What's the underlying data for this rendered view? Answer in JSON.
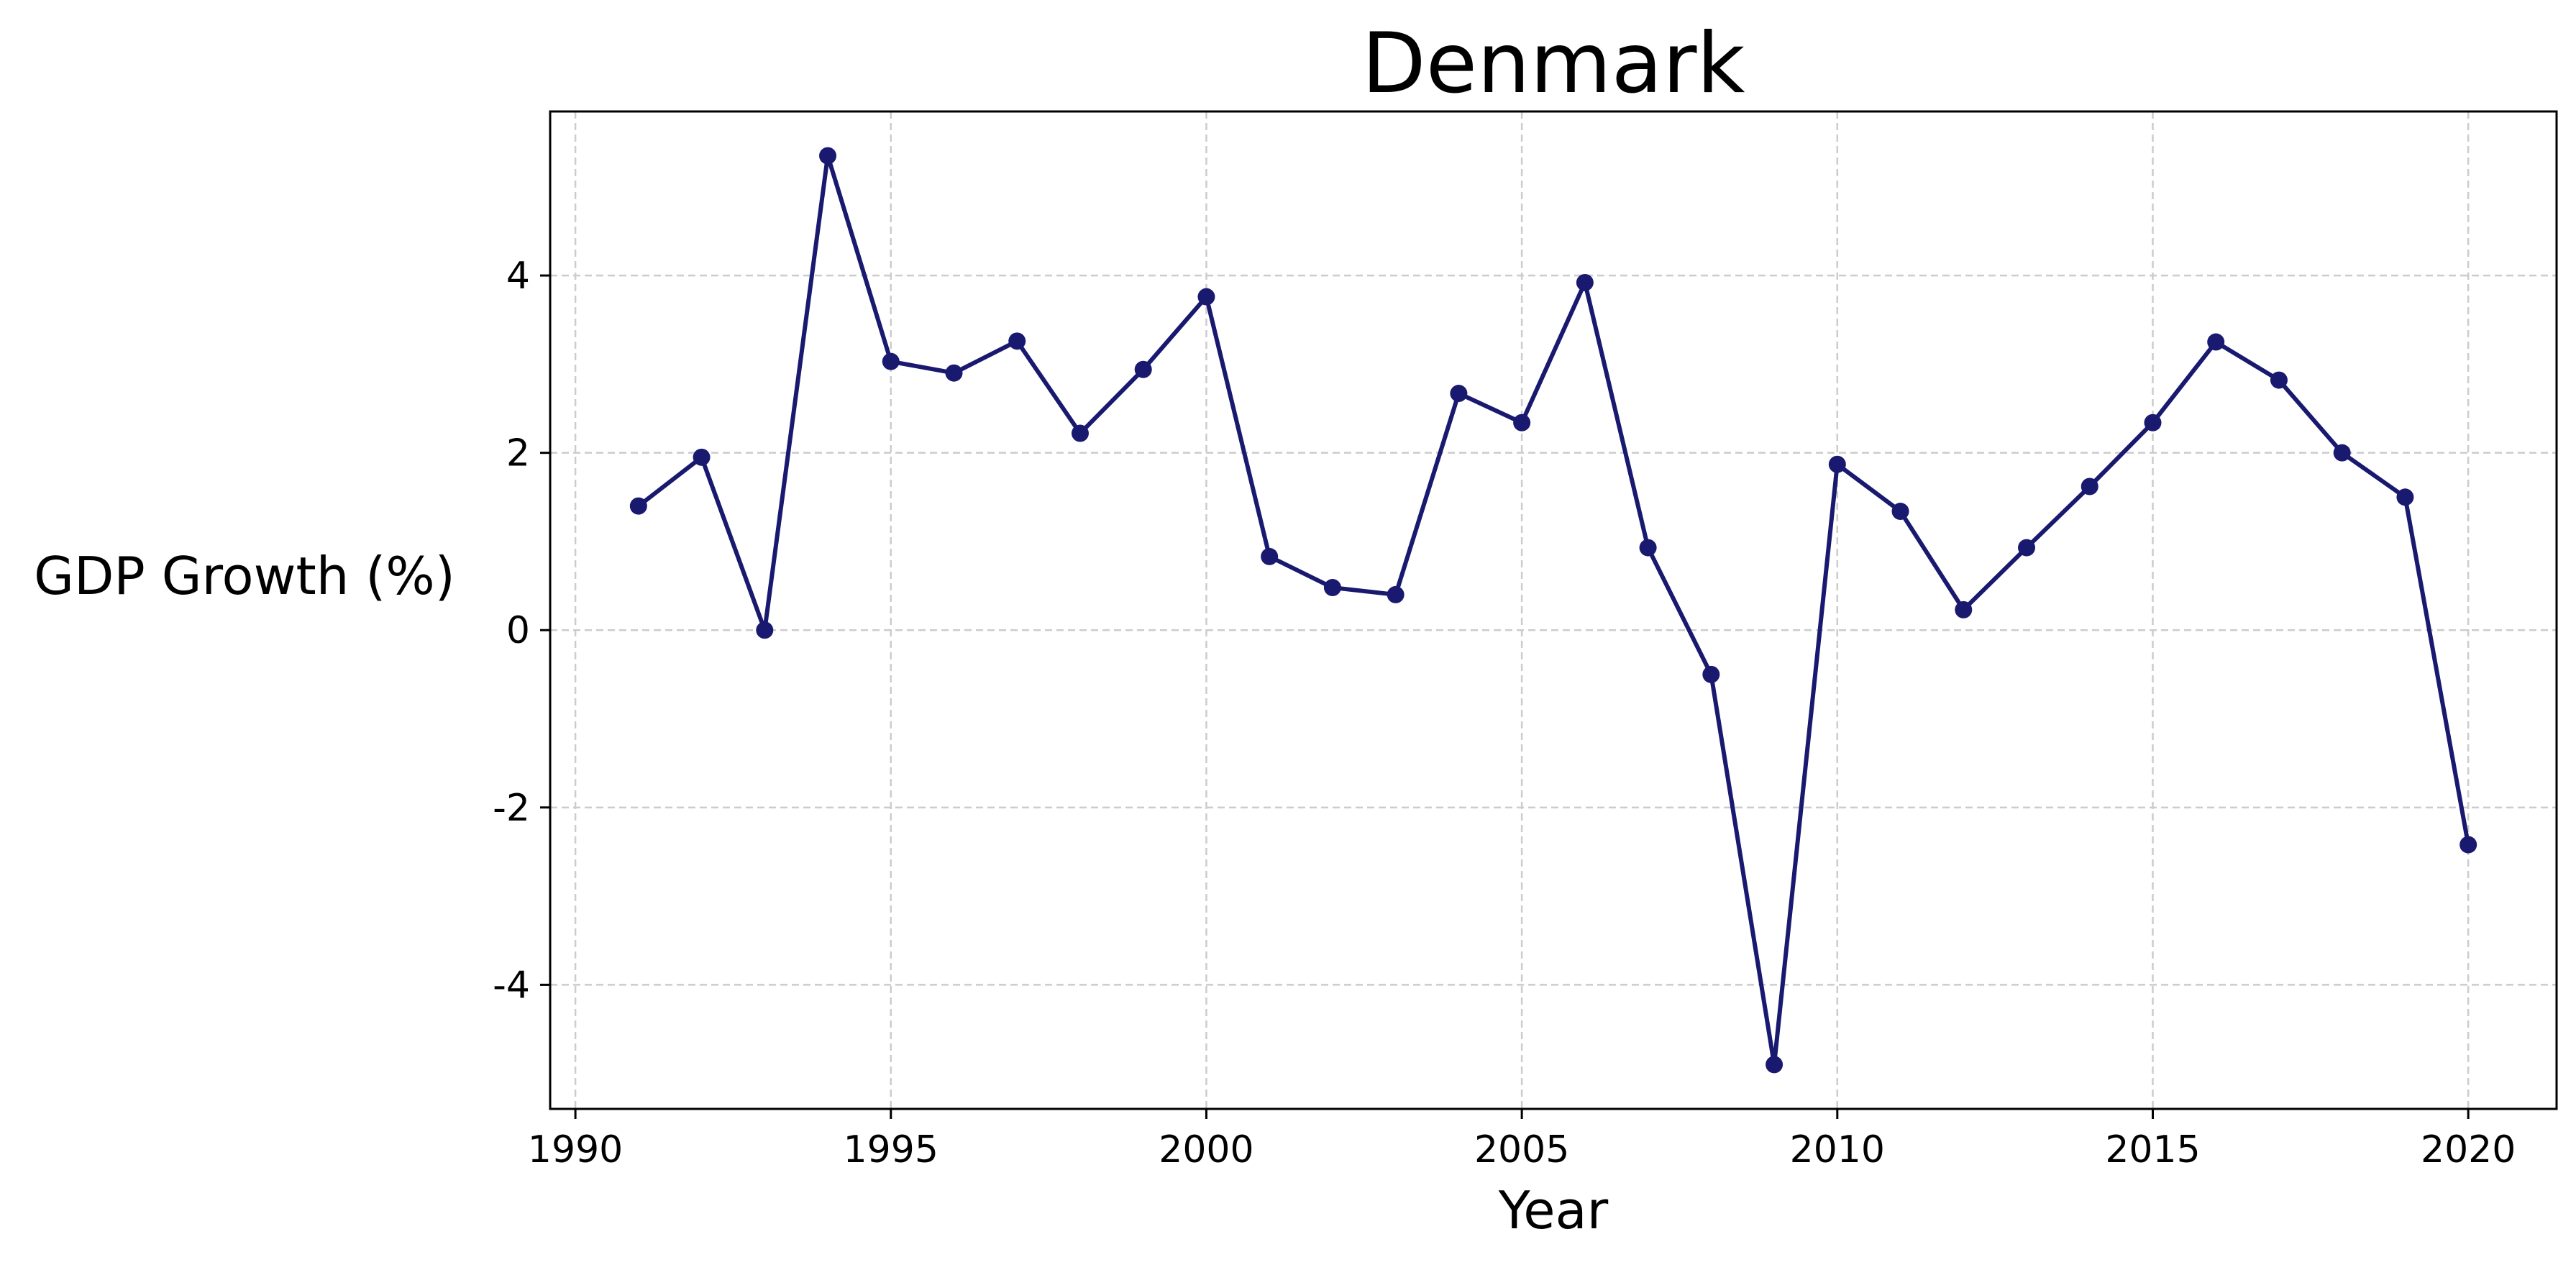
{
  "chart_data": {
    "type": "line",
    "title": "Denmark",
    "xlabel": "Year",
    "ylabel": "GDP Growth (%)",
    "xlim": [
      1989.6,
      2021.4
    ],
    "ylim": [
      -5.4,
      5.85
    ],
    "xticks": [
      1990,
      1995,
      2000,
      2005,
      2010,
      2015,
      2020
    ],
    "yticks": [
      -4,
      -2,
      0,
      2,
      4
    ],
    "grid": true,
    "legend": "none",
    "color": "#191970",
    "series": [
      {
        "x": [
          1991,
          1992,
          1993,
          1994,
          1995,
          1996,
          1997,
          1998,
          1999,
          2000,
          2001,
          2002,
          2003,
          2004,
          2005,
          2006,
          2007,
          2008,
          2009,
          2010,
          2011,
          2012,
          2013,
          2014,
          2015,
          2016,
          2017,
          2018,
          2019,
          2020
        ],
        "y": [
          1.4,
          1.95,
          0.0,
          5.35,
          3.03,
          2.9,
          3.26,
          2.22,
          2.94,
          3.76,
          0.83,
          0.48,
          0.4,
          2.67,
          2.34,
          3.92,
          0.93,
          -0.5,
          -4.9,
          1.87,
          1.34,
          0.23,
          0.93,
          1.62,
          2.34,
          3.25,
          2.82,
          2.0,
          1.5,
          -2.42
        ]
      }
    ]
  }
}
